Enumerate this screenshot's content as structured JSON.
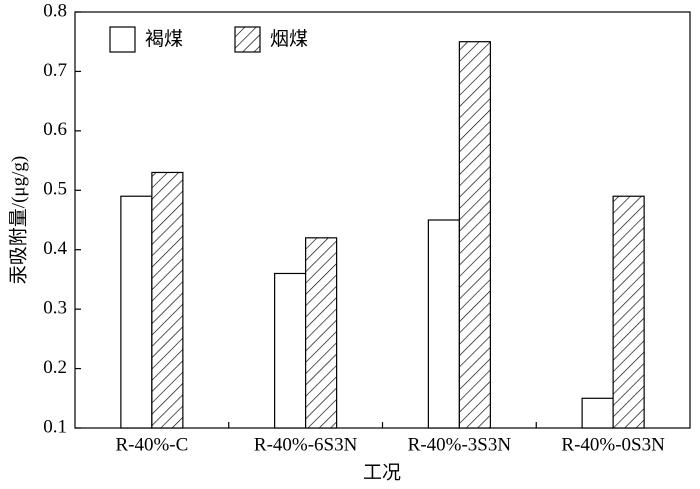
{
  "chart_data": {
    "type": "bar",
    "categories": [
      "R-40%-C",
      "R-40%-6S3N",
      "R-40%-3S3N",
      "R-40%-0S3N"
    ],
    "series": [
      {
        "name": "褐煤",
        "color": "#ffffff",
        "hatch": false,
        "values": [
          0.49,
          0.36,
          0.45,
          0.15
        ]
      },
      {
        "name": "烟煤",
        "color": "#ffffff",
        "hatch": true,
        "values": [
          0.53,
          0.42,
          0.75,
          0.49
        ]
      }
    ],
    "xlabel": "工况",
    "ylabel": "汞吸附量/(μg/g)",
    "ylim": [
      0.1,
      0.8
    ],
    "yticks": [
      0.1,
      0.2,
      0.3,
      0.4,
      0.5,
      0.6,
      0.7,
      0.8
    ],
    "legend": "upper left",
    "grid": false
  }
}
